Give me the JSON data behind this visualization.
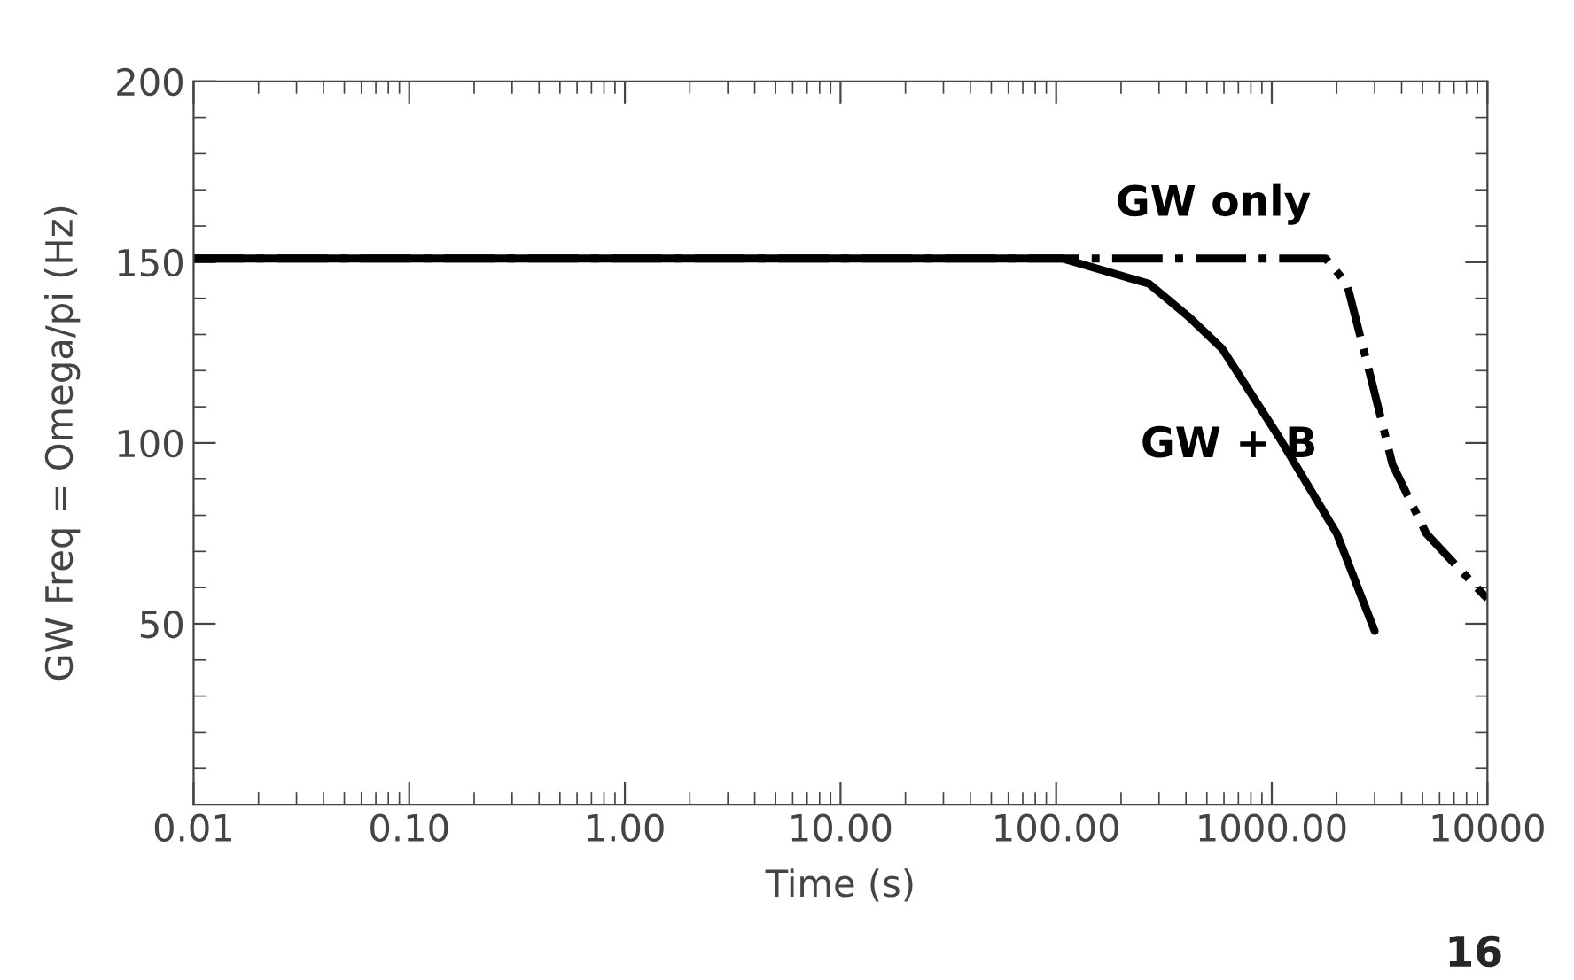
{
  "chart_data": {
    "type": "line",
    "xlabel": "Time (s)",
    "ylabel": "GW Freq = Omega/pi (Hz)",
    "log": "x",
    "xlim": [
      0.01,
      10000
    ],
    "ylim": [
      0,
      200
    ],
    "xticks": [
      {
        "value": 0.01,
        "label": "0.01"
      },
      {
        "value": 0.1,
        "label": "0.10"
      },
      {
        "value": 1,
        "label": "1.00"
      },
      {
        "value": 10,
        "label": "10.00"
      },
      {
        "value": 100,
        "label": "100.00"
      },
      {
        "value": 1000,
        "label": "1000.00"
      },
      {
        "value": 10000,
        "label": "10000"
      }
    ],
    "yticks": [
      50,
      100,
      150,
      200
    ],
    "grid": false,
    "legend": false,
    "marker": "none",
    "series": [
      {
        "name": "GW + B",
        "color": "#000000",
        "line_style": "solid",
        "x": [
          0.01,
          10,
          107,
          270,
          410,
          590,
          1070,
          2000,
          3000
        ],
        "values": [
          151,
          151,
          151,
          144,
          135,
          126,
          102,
          75,
          48
        ]
      },
      {
        "name": "GW only",
        "color": "#000000",
        "line_style": "dashdot",
        "x": [
          0.01,
          10,
          100,
          1780,
          2230,
          2880,
          3630,
          5200,
          9600,
          10000
        ],
        "values": [
          151,
          151,
          151,
          151,
          144,
          118,
          94,
          75,
          58,
          57
        ]
      }
    ],
    "annotations": [
      "16"
    ]
  }
}
